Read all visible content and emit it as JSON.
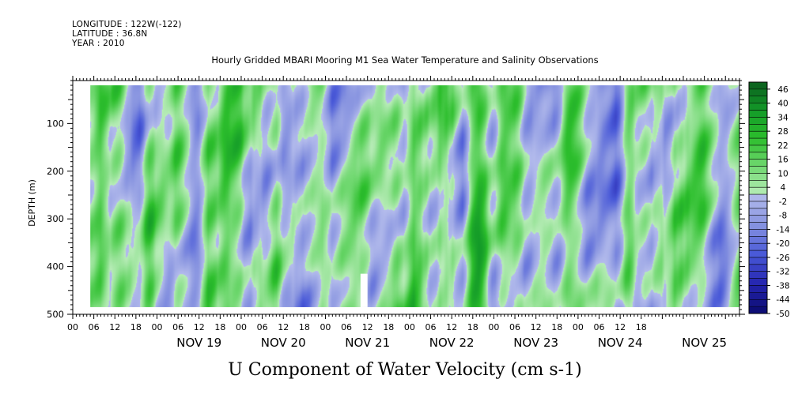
{
  "header": {
    "longitude": "LONGITUDE : 122W(-122)",
    "latitude": "LATITUDE : 36.8N",
    "year": "YEAR : 2010"
  },
  "chart_data": {
    "type": "heatmap",
    "title": "Hourly Gridded MBARI Mooring M1 Sea Water Temperature and Salinity Observations",
    "xlabel": "U Component of Water Velocity (cm s-1)",
    "ylabel": "DEPTH (m)",
    "x_range": [
      "2010-11-18T00:00",
      "2010-11-25T22:00"
    ],
    "data_x_range": [
      "2010-11-18T05:00",
      "2010-11-25T22:00"
    ],
    "x_hour_ticks": [
      "00",
      "06",
      "12",
      "18",
      "00",
      "06",
      "12",
      "18",
      "00",
      "06",
      "12",
      "18",
      "00",
      "06",
      "12",
      "18",
      "00",
      "06",
      "12",
      "18",
      "00",
      "06",
      "12",
      "18",
      "00",
      "06",
      "12",
      "18"
    ],
    "x_day_labels": [
      "NOV 19",
      "NOV 20",
      "NOV 21",
      "NOV 22",
      "NOV 23",
      "NOV 24",
      "NOV 25"
    ],
    "ylim": [
      500,
      10
    ],
    "y_ticks": [
      100,
      200,
      300,
      400,
      500
    ],
    "data_depth_range": [
      20,
      485
    ],
    "colorbar_labels": [
      "46",
      "40",
      "34",
      "28",
      "22",
      "16",
      "10",
      "4",
      "-2",
      "-8",
      "-14",
      "-20",
      "-26",
      "-32",
      "-38",
      "-44",
      "-50"
    ],
    "colorbar_range": [
      -50,
      49
    ],
    "colors": {
      "blue_range": [
        "#0a0a6e",
        "#2525b0",
        "#4a5ad8",
        "#8894e0",
        "#b4bcec"
      ],
      "green_range": [
        "#b8ecb8",
        "#70d870",
        "#2cbe2c",
        "#139a28",
        "#0b5d1e"
      ]
    },
    "missing_data_gap": {
      "time_range": [
        "2010-11-21T10:00",
        "2010-11-21T12:00"
      ],
      "depth_range": [
        415,
        485
      ]
    }
  }
}
